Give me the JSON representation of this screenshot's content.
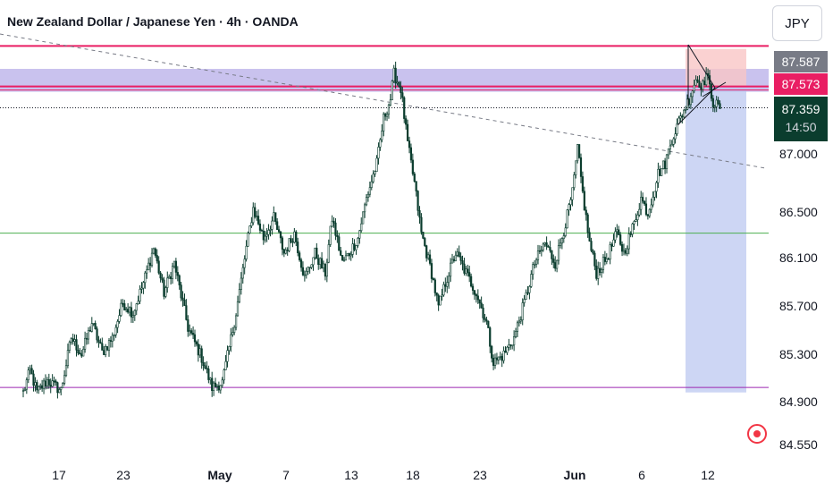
{
  "header": {
    "title": "New Zealand Dollar / Japanese Yen · 4h · OANDA",
    "currency_button": "JPY"
  },
  "price_tags": {
    "resistance": "87.587",
    "line": "87.573",
    "current": "87.359",
    "countdown": "14:50"
  },
  "colors": {
    "bull": "#0b3d2e",
    "bear": "#0b3d2e",
    "resistance_zone": "#9c8fe0",
    "resistance_line": "#e91e63",
    "support_line": "#4caf50",
    "low_line": "#9c27b0",
    "target_zone": "#b8c4f0",
    "stop_zone": "#f9c6c6",
    "trendline": "#787b86"
  },
  "chart_data": {
    "type": "candlestick",
    "title": "New Zealand Dollar / Japanese Yen · 4h · OANDA",
    "symbol": "NZDJPY",
    "timeframe": "4h",
    "source": "OANDA",
    "quote_currency": "JPY",
    "x_tick_labels": [
      "17",
      "23",
      "May",
      "7",
      "13",
      "18",
      "23",
      "Jun",
      "6",
      "12"
    ],
    "y_tick_labels": [
      "87.000",
      "86.500",
      "86.100",
      "85.700",
      "85.300",
      "84.900",
      "84.550"
    ],
    "y_range": [
      84.5,
      88.06
    ],
    "current_price": 87.359,
    "countdown": "14:50",
    "horizontal_levels": [
      {
        "price": 87.98,
        "kind": "resistance-line"
      },
      {
        "price": 87.573,
        "kind": "line"
      },
      {
        "price": 86.1,
        "kind": "support-line"
      },
      {
        "price": 84.55,
        "kind": "low-line"
      }
    ],
    "zones": [
      {
        "kind": "resistance-zone",
        "price_top": 87.75,
        "price_bottom": 87.52
      },
      {
        "kind": "target-zone",
        "price_top": 87.55,
        "price_bottom": 84.5
      },
      {
        "kind": "stop-zone",
        "price_top": 87.95,
        "price_bottom": 87.58
      }
    ],
    "trendline": {
      "from_price": 88.1,
      "to_price": 86.75,
      "style": "dashed"
    },
    "path": [
      [
        0,
        84.5
      ],
      [
        4,
        84.72
      ],
      [
        8,
        84.5
      ],
      [
        14,
        84.62
      ],
      [
        22,
        84.52
      ],
      [
        28,
        85.05
      ],
      [
        34,
        84.88
      ],
      [
        40,
        85.2
      ],
      [
        46,
        84.9
      ],
      [
        52,
        85.05
      ],
      [
        58,
        85.4
      ],
      [
        64,
        85.3
      ],
      [
        70,
        85.6
      ],
      [
        76,
        85.95
      ],
      [
        82,
        85.5
      ],
      [
        88,
        85.8
      ],
      [
        96,
        85.15
      ],
      [
        104,
        84.85
      ],
      [
        110,
        84.55
      ],
      [
        116,
        84.6
      ],
      [
        124,
        85.3
      ],
      [
        130,
        85.95
      ],
      [
        134,
        86.35
      ],
      [
        140,
        86.05
      ],
      [
        146,
        86.25
      ],
      [
        152,
        85.9
      ],
      [
        158,
        86.1
      ],
      [
        164,
        85.65
      ],
      [
        170,
        85.9
      ],
      [
        176,
        85.7
      ],
      [
        180,
        86.25
      ],
      [
        186,
        85.8
      ],
      [
        190,
        85.9
      ],
      [
        195,
        86.05
      ],
      [
        200,
        86.45
      ],
      [
        206,
        86.8
      ],
      [
        210,
        87.25
      ],
      [
        214,
        87.45
      ],
      [
        216,
        87.7
      ],
      [
        220,
        87.55
      ],
      [
        224,
        87.0
      ],
      [
        228,
        86.6
      ],
      [
        232,
        86.1
      ],
      [
        238,
        85.7
      ],
      [
        242,
        85.35
      ],
      [
        246,
        85.6
      ],
      [
        252,
        85.9
      ],
      [
        258,
        85.7
      ],
      [
        264,
        85.5
      ],
      [
        270,
        85.2
      ],
      [
        274,
        84.8
      ],
      [
        280,
        84.88
      ],
      [
        286,
        85.05
      ],
      [
        292,
        85.4
      ],
      [
        298,
        85.8
      ],
      [
        304,
        86.0
      ],
      [
        310,
        85.8
      ],
      [
        316,
        86.2
      ],
      [
        320,
        86.5
      ],
      [
        323,
        86.95
      ],
      [
        326,
        86.5
      ],
      [
        330,
        86.0
      ],
      [
        334,
        85.7
      ],
      [
        340,
        85.85
      ],
      [
        346,
        86.1
      ],
      [
        350,
        85.9
      ],
      [
        356,
        86.2
      ],
      [
        360,
        86.45
      ],
      [
        364,
        86.3
      ],
      [
        370,
        86.7
      ],
      [
        374,
        86.8
      ],
      [
        378,
        87.05
      ],
      [
        384,
        87.3
      ],
      [
        388,
        87.45
      ],
      [
        392,
        87.65
      ],
      [
        396,
        87.58
      ],
      [
        398,
        87.7
      ],
      [
        402,
        87.42
      ],
      [
        406,
        87.35
      ]
    ]
  }
}
